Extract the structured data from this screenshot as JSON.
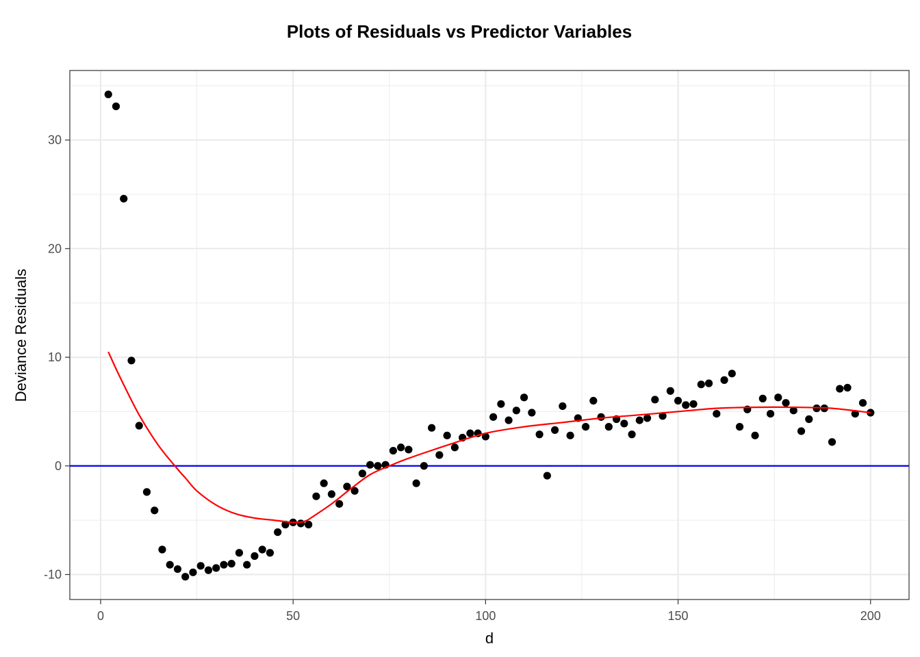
{
  "chart_data": {
    "type": "scatter",
    "title": "Plots of Residuals vs Predictor Variables",
    "xlabel": "d",
    "ylabel": "Deviance Residuals",
    "xlim": [
      -8,
      210
    ],
    "ylim": [
      -12.3,
      36.4
    ],
    "x_ticks": [
      0,
      50,
      100,
      150,
      200
    ],
    "y_ticks": [
      -10,
      0,
      10,
      20,
      30
    ],
    "x_tick_labels": [
      "0",
      "50",
      "100",
      "150",
      "200"
    ],
    "y_tick_labels": [
      "-10",
      "0",
      "10",
      "20",
      "30"
    ],
    "grid": true,
    "reference_line": {
      "y": 0,
      "color": "#0000ee"
    },
    "point_color": "#000000",
    "smooth_color": "#ff0000",
    "points": {
      "x": [
        2,
        4,
        6,
        8,
        10,
        12,
        14,
        16,
        18,
        20,
        22,
        24,
        26,
        28,
        30,
        32,
        34,
        36,
        38,
        40,
        42,
        44,
        46,
        48,
        50,
        52,
        54,
        56,
        58,
        60,
        62,
        64,
        66,
        68,
        70,
        72,
        74,
        76,
        78,
        80,
        82,
        84,
        86,
        88,
        90,
        92,
        94,
        96,
        98,
        100,
        102,
        104,
        106,
        108,
        110,
        112,
        114,
        116,
        118,
        120,
        122,
        124,
        126,
        128,
        130,
        132,
        134,
        136,
        138,
        140,
        142,
        144,
        146,
        148,
        150,
        152,
        154,
        156,
        158,
        160,
        162,
        164,
        166,
        168,
        170,
        172,
        174,
        176,
        178,
        180,
        182,
        184,
        186,
        188,
        190,
        192,
        194,
        196,
        198,
        200
      ],
      "y": [
        34.2,
        33.1,
        24.6,
        9.7,
        3.7,
        -2.4,
        -4.1,
        -7.7,
        -9.1,
        -9.5,
        -10.2,
        -9.8,
        -9.2,
        -9.6,
        -9.4,
        -9.1,
        -9.0,
        -8.0,
        -9.1,
        -8.3,
        -7.7,
        -8.0,
        -6.1,
        -5.4,
        -5.2,
        -5.3,
        -5.4,
        -2.8,
        -1.6,
        -2.6,
        -3.5,
        -1.9,
        -2.3,
        -0.7,
        0.1,
        0.0,
        0.1,
        1.4,
        1.7,
        1.5,
        -1.6,
        0.0,
        3.5,
        1.0,
        2.8,
        1.7,
        2.6,
        3.0,
        3.0,
        2.7,
        4.5,
        5.7,
        4.2,
        5.1,
        6.3,
        4.9,
        2.9,
        -0.9,
        3.3,
        5.5,
        2.8,
        4.4,
        3.6,
        6.0,
        4.5,
        3.6,
        4.3,
        3.9,
        2.9,
        4.2,
        4.4,
        6.1,
        4.6,
        6.9,
        6.0,
        5.6,
        5.7,
        7.5,
        7.6,
        4.8,
        7.9,
        8.5,
        3.6,
        5.2,
        2.8,
        6.2,
        4.8,
        6.3,
        5.8,
        5.1,
        3.2,
        4.3,
        5.3,
        5.3,
        2.2,
        7.1,
        7.2,
        4.8,
        5.8,
        4.9
      ]
    },
    "smooth_curve": {
      "x": [
        2,
        5,
        10,
        15,
        20,
        22,
        25,
        30,
        35,
        40,
        45,
        50,
        53,
        55,
        60,
        65,
        70,
        75,
        80,
        90,
        100,
        110,
        120,
        130,
        140,
        150,
        160,
        170,
        180,
        190,
        200
      ],
      "y": [
        10.5,
        8.2,
        4.7,
        1.9,
        -0.3,
        -1.1,
        -2.3,
        -3.6,
        -4.4,
        -4.8,
        -5.0,
        -5.2,
        -5.1,
        -4.7,
        -3.5,
        -2.1,
        -0.8,
        0.0,
        0.7,
        1.9,
        3.0,
        3.6,
        4.0,
        4.4,
        4.7,
        5.0,
        5.3,
        5.4,
        5.4,
        5.3,
        4.9
      ]
    }
  }
}
